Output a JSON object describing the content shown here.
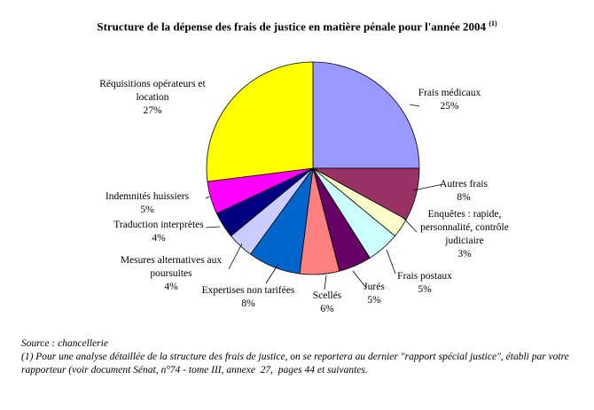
{
  "chart_data": {
    "type": "pie",
    "title": "Structure de la dépense des frais de justice en matière pénale pour l'année 2004",
    "title_note": "(1)",
    "slices": [
      {
        "label_lines": [
          "Frais médicaux"
        ],
        "value_label": "25%",
        "value": 25,
        "color": "#9999ff"
      },
      {
        "label_lines": [
          "Autres frais"
        ],
        "value_label": "8%",
        "value": 8,
        "color": "#993366"
      },
      {
        "label_lines": [
          "Enquêtes : rapide,",
          "personnalité, contrôle",
          "judiciaire"
        ],
        "value_label": "3%",
        "value": 3,
        "color": "#ffffcc"
      },
      {
        "label_lines": [
          "Frais postaux"
        ],
        "value_label": "5%",
        "value": 5,
        "color": "#ccffff"
      },
      {
        "label_lines": [
          "Jurés"
        ],
        "value_label": "5%",
        "value": 5,
        "color": "#660066"
      },
      {
        "label_lines": [
          "Scellés"
        ],
        "value_label": "6%",
        "value": 6,
        "color": "#ff8080"
      },
      {
        "label_lines": [
          "Expertises non tarifées"
        ],
        "value_label": "8%",
        "value": 8,
        "color": "#0066cc"
      },
      {
        "label_lines": [
          "Mesures alternatives aux",
          "poursuites"
        ],
        "value_label": "4%",
        "value": 4,
        "color": "#ccccff"
      },
      {
        "label_lines": [
          "Traduction interprètes"
        ],
        "value_label": "4%",
        "value": 4,
        "color": "#000080"
      },
      {
        "label_lines": [
          "Indemnités huissiers"
        ],
        "value_label": "5%",
        "value": 5,
        "color": "#ff00ff"
      },
      {
        "label_lines": [
          "Réquisitions opérateurs et",
          "location"
        ],
        "value_label": "27%",
        "value": 27,
        "color": "#ffff00"
      }
    ]
  },
  "footer": {
    "source": "Source : chancellerie",
    "note": "(1) Pour une analyse détaillée de la structure des frais de justice, on se reportera au dernier \"rapport spécial justice\", établi par votre rapporteur (voir document Sénat, n°74 - tome III, annexe  27,  pages 44 et suivantes."
  }
}
